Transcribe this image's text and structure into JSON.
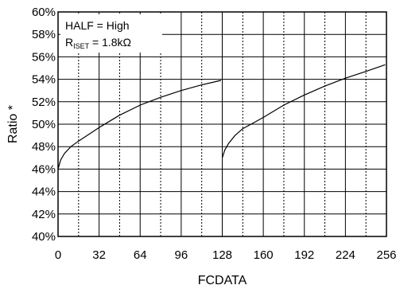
{
  "chart_data": {
    "type": "line",
    "xlabel": "FCDATA",
    "ylabel": "Ratio *",
    "xlim": [
      0,
      256
    ],
    "ylim": [
      40,
      60
    ],
    "x_ticks": [
      0,
      32,
      64,
      96,
      128,
      160,
      192,
      224,
      256
    ],
    "x_tick_labels": [
      "0",
      "32",
      "64",
      "96",
      "128",
      "160",
      "192",
      "224",
      "256"
    ],
    "y_ticks": [
      40,
      42,
      44,
      46,
      48,
      50,
      52,
      54,
      56,
      58,
      60
    ],
    "y_tick_labels": [
      "40%",
      "42%",
      "44%",
      "46%",
      "48%",
      "50%",
      "52%",
      "54%",
      "56%",
      "58%",
      "60%"
    ],
    "x_minor_dotted": [
      16,
      48,
      80,
      112,
      144,
      176,
      208,
      240
    ],
    "grid": true,
    "annotation": {
      "line1": "HALF = High",
      "line2_prefix": "R",
      "line2_subscript": "ISET",
      "line2_suffix": " = 1.8kΩ"
    },
    "series": [
      {
        "segments": [
          {
            "x": [
              0,
              2,
              5,
              10,
              16,
              24,
              32,
              48,
              64,
              80,
              96,
              112,
              127
            ],
            "y": [
              46.0,
              46.8,
              47.4,
              48.0,
              48.5,
              49.1,
              49.7,
              50.8,
              51.7,
              52.4,
              53.0,
              53.5,
              53.9
            ]
          },
          {
            "x": [
              128,
              130,
              133,
              138,
              144,
              152,
              160,
              176,
              192,
              208,
              224,
              240,
              255
            ],
            "y": [
              47.0,
              47.7,
              48.3,
              49.0,
              49.6,
              50.1,
              50.6,
              51.7,
              52.6,
              53.4,
              54.1,
              54.7,
              55.3
            ]
          }
        ],
        "color": "#000000"
      }
    ]
  }
}
